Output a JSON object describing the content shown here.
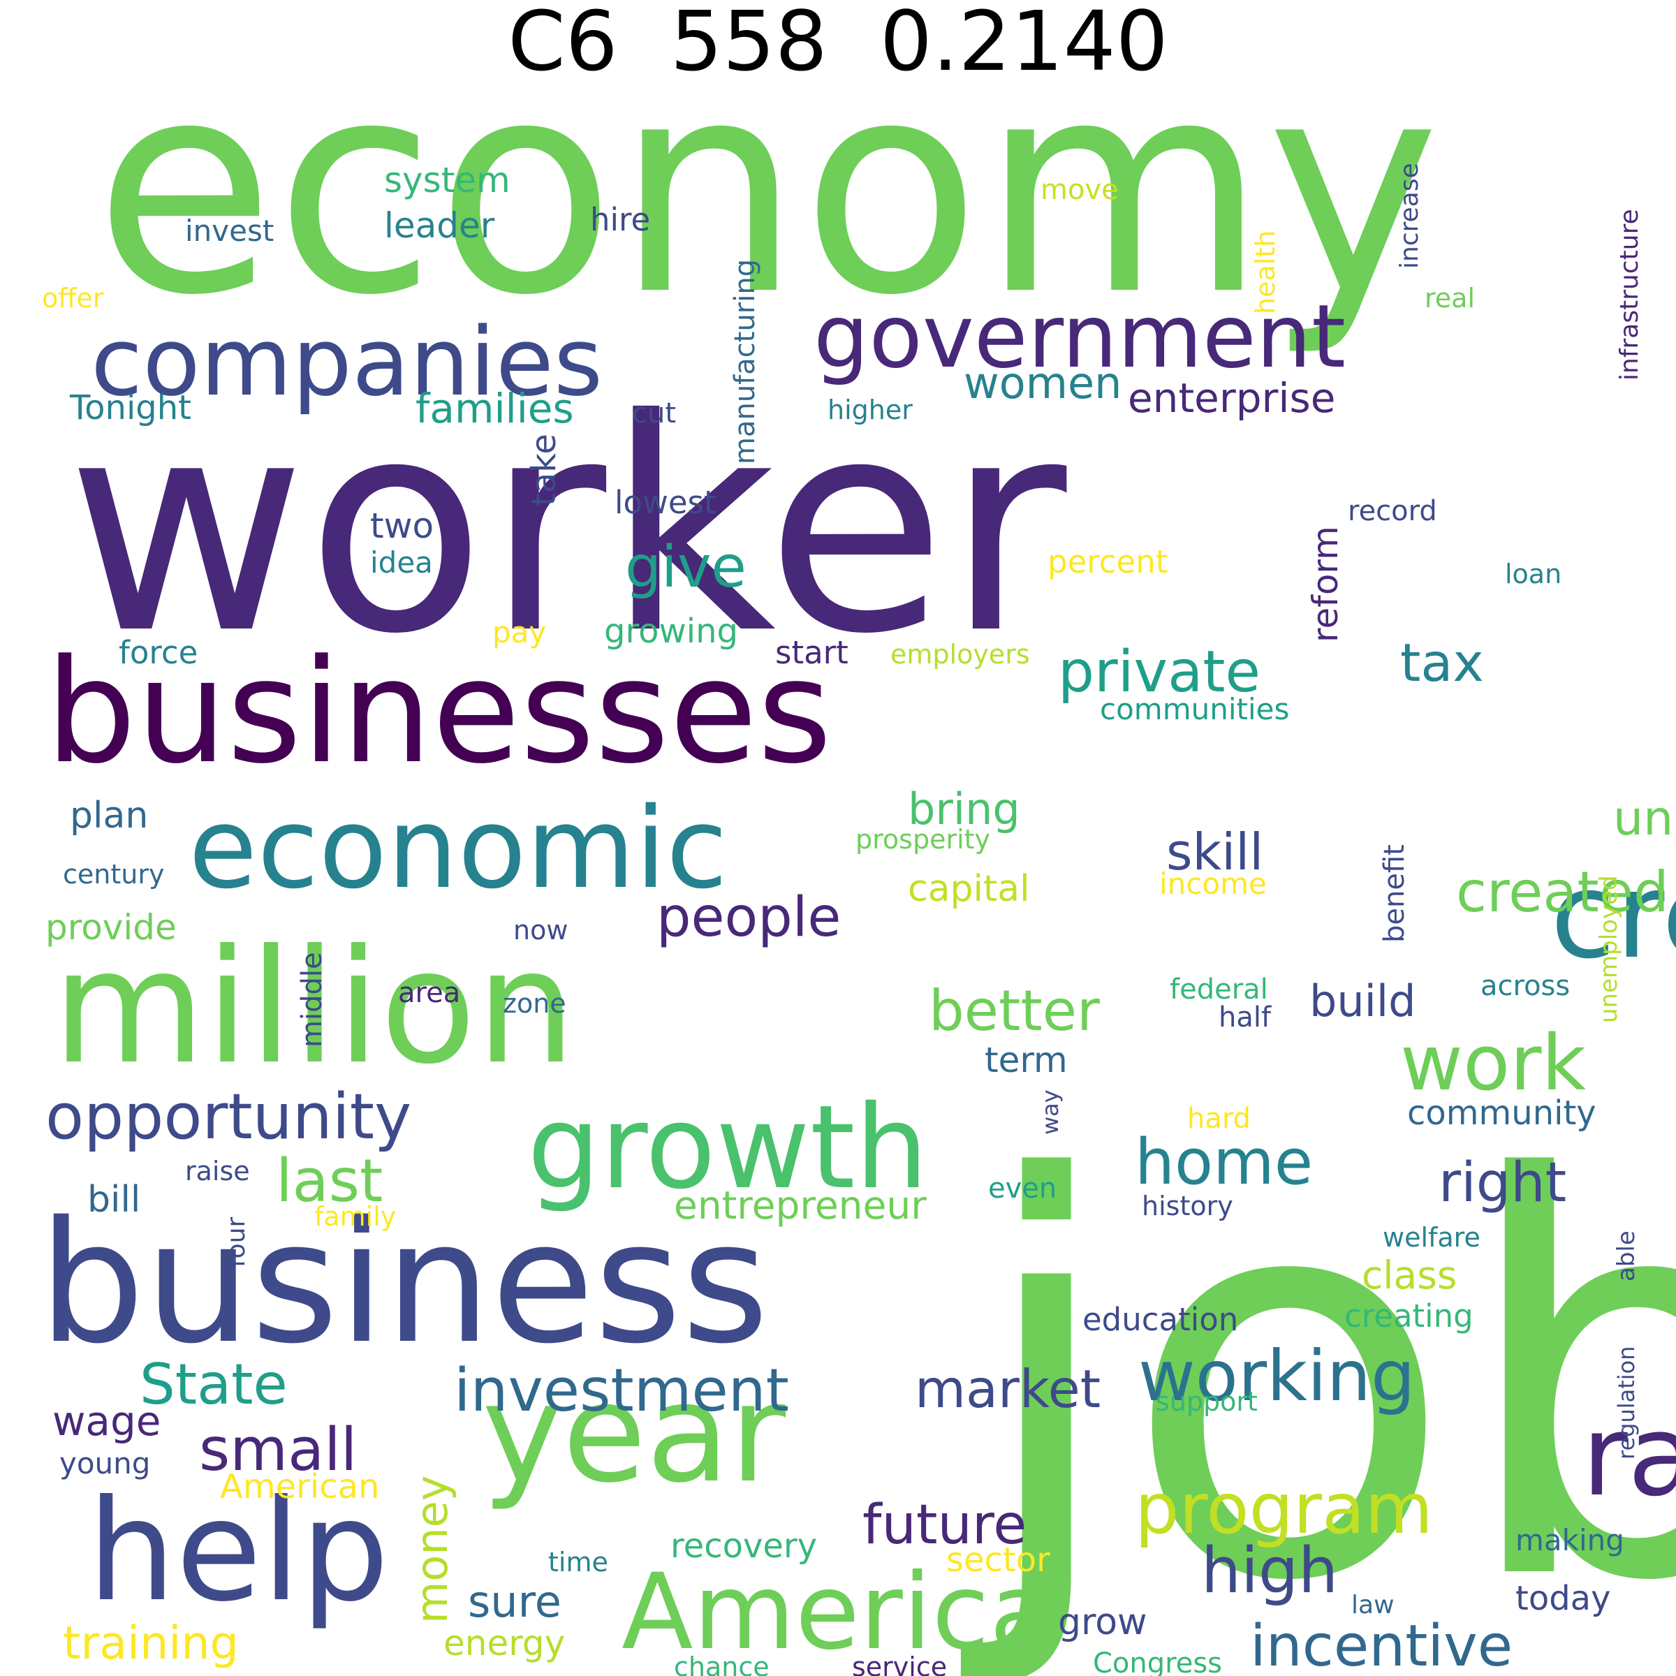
{
  "title": "C6  558  0.2140",
  "palette": {
    "viridis_deep_purple": "#440154",
    "viridis_purple": "#482878",
    "viridis_indigo": "#3e4a89",
    "viridis_blue": "#31688e",
    "viridis_teal": "#26828e",
    "viridis_green_teal": "#1f9e89",
    "viridis_green": "#35b779",
    "viridis_light_green": "#6ece58",
    "viridis_lime": "#b5de2b",
    "viridis_yellow": "#fde725"
  },
  "words": [
    {
      "text": "economy",
      "color": "#6ece58"
    },
    {
      "text": "worker",
      "color": "#482878"
    },
    {
      "text": "job",
      "color": "#6ece58"
    },
    {
      "text": "businesses",
      "color": "#440154"
    },
    {
      "text": "business",
      "color": "#3e4a89"
    },
    {
      "text": "million",
      "color": "#6ece58"
    },
    {
      "text": "companies",
      "color": "#3e4a89"
    },
    {
      "text": "government",
      "color": "#482878"
    },
    {
      "text": "economic",
      "color": "#26828e"
    },
    {
      "text": "create",
      "color": "#26828e"
    },
    {
      "text": "growth",
      "color": "#4ac16d"
    },
    {
      "text": "year",
      "color": "#6ece58"
    },
    {
      "text": "help",
      "color": "#3e4a89"
    },
    {
      "text": "America",
      "color": "#6ece58"
    },
    {
      "text": "rate",
      "color": "#482878"
    },
    {
      "text": "opportunity",
      "color": "#3e4a89"
    },
    {
      "text": "work",
      "color": "#6ece58"
    },
    {
      "text": "working",
      "color": "#2c728e"
    },
    {
      "text": "program",
      "color": "#c2df23"
    },
    {
      "text": "incentive",
      "color": "#31688e"
    },
    {
      "text": "investment",
      "color": "#31688e"
    },
    {
      "text": "tax",
      "color": "#26828e"
    },
    {
      "text": "created",
      "color": "#6ece58"
    },
    {
      "text": "unemployment",
      "color": "#6ece58"
    },
    {
      "text": "private",
      "color": "#1f9e89"
    },
    {
      "text": "home",
      "color": "#26828e"
    },
    {
      "text": "better",
      "color": "#6ece58"
    },
    {
      "text": "people",
      "color": "#482878"
    },
    {
      "text": "high",
      "color": "#3e4a89"
    },
    {
      "text": "last",
      "color": "#6ece58"
    },
    {
      "text": "State",
      "color": "#1f9e89"
    },
    {
      "text": "small",
      "color": "#482878"
    },
    {
      "text": "market",
      "color": "#3e4a89"
    },
    {
      "text": "future",
      "color": "#482878"
    },
    {
      "text": "right",
      "color": "#3e4a89"
    },
    {
      "text": "give",
      "color": "#1f9e89"
    },
    {
      "text": "bring",
      "color": "#4ac16d"
    },
    {
      "text": "skill",
      "color": "#3e4a89"
    },
    {
      "text": "women",
      "color": "#26828e"
    },
    {
      "text": "enterprise",
      "color": "#482878"
    },
    {
      "text": "families",
      "color": "#1f9e89"
    },
    {
      "text": "training",
      "color": "#fde725"
    },
    {
      "text": "money",
      "color": "#b5de2b"
    },
    {
      "text": "build",
      "color": "#3e4a89"
    },
    {
      "text": "entrepreneur",
      "color": "#6ece58"
    },
    {
      "text": "reform",
      "color": "#482878"
    },
    {
      "text": "capital",
      "color": "#c2df23"
    },
    {
      "text": "plan",
      "color": "#31688e"
    },
    {
      "text": "wage",
      "color": "#482878"
    },
    {
      "text": "sure",
      "color": "#31688e"
    },
    {
      "text": "class",
      "color": "#b5de2b"
    },
    {
      "text": "system",
      "color": "#35b779"
    },
    {
      "text": "leader",
      "color": "#26828e"
    },
    {
      "text": "provide",
      "color": "#6ece58"
    },
    {
      "text": "recovery",
      "color": "#35b779"
    },
    {
      "text": "energy",
      "color": "#b5de2b"
    },
    {
      "text": "community",
      "color": "#31688e"
    },
    {
      "text": "creating",
      "color": "#35b779"
    },
    {
      "text": "education",
      "color": "#3e4a89"
    },
    {
      "text": "American",
      "color": "#fde725"
    },
    {
      "text": "sector",
      "color": "#fde725"
    },
    {
      "text": "grow",
      "color": "#3e4a89"
    },
    {
      "text": "growing",
      "color": "#35b779"
    },
    {
      "text": "communities",
      "color": "#1f9e89"
    },
    {
      "text": "start",
      "color": "#482878"
    },
    {
      "text": "term",
      "color": "#31688e"
    },
    {
      "text": "bill",
      "color": "#31688e"
    },
    {
      "text": "Tonight",
      "color": "#26828e"
    },
    {
      "text": "two",
      "color": "#3e4a89"
    },
    {
      "text": "take",
      "color": "#3e4a89"
    },
    {
      "text": "lowest",
      "color": "#3e4a89"
    },
    {
      "text": "percent",
      "color": "#fde725"
    },
    {
      "text": "income",
      "color": "#fde725"
    },
    {
      "text": "today",
      "color": "#3e4a89"
    },
    {
      "text": "making",
      "color": "#31688e"
    },
    {
      "text": "force",
      "color": "#26828e"
    },
    {
      "text": "invest",
      "color": "#31688e"
    },
    {
      "text": "hire",
      "color": "#3e4a89"
    },
    {
      "text": "move",
      "color": "#c8e020"
    },
    {
      "text": "manufacturing",
      "color": "#31688e"
    },
    {
      "text": "cut",
      "color": "#3e4a89"
    },
    {
      "text": "higher",
      "color": "#26828e"
    },
    {
      "text": "young",
      "color": "#3e4a89"
    },
    {
      "text": "idea",
      "color": "#26828e"
    },
    {
      "text": "middle",
      "color": "#3e4a89"
    },
    {
      "text": "benefit",
      "color": "#3e4a89"
    },
    {
      "text": "record",
      "color": "#3e4a89"
    },
    {
      "text": "pay",
      "color": "#fde725"
    },
    {
      "text": "employers",
      "color": "#b5de2b"
    },
    {
      "text": "prosperity",
      "color": "#6ece58"
    },
    {
      "text": "now",
      "color": "#3e4a89"
    },
    {
      "text": "area",
      "color": "#482878"
    },
    {
      "text": "zone",
      "color": "#31688e"
    },
    {
      "text": "federal",
      "color": "#35b779"
    },
    {
      "text": "half",
      "color": "#3e4a89"
    },
    {
      "text": "across",
      "color": "#26828e"
    },
    {
      "text": "hard",
      "color": "#fde725"
    },
    {
      "text": "even",
      "color": "#1f9e89"
    },
    {
      "text": "history",
      "color": "#3e4a89"
    },
    {
      "text": "welfare",
      "color": "#26828e"
    },
    {
      "text": "raise",
      "color": "#3e4a89"
    },
    {
      "text": "family",
      "color": "#fde725"
    },
    {
      "text": "four",
      "color": "#3e4a89"
    },
    {
      "text": "support",
      "color": "#35b779"
    },
    {
      "text": "time",
      "color": "#26828e"
    },
    {
      "text": "law",
      "color": "#31688e"
    },
    {
      "text": "Congress",
      "color": "#35b779"
    },
    {
      "text": "chance",
      "color": "#35b779"
    },
    {
      "text": "service",
      "color": "#482878"
    },
    {
      "text": "offer",
      "color": "#fde725"
    },
    {
      "text": "century",
      "color": "#31688e"
    },
    {
      "text": "real",
      "color": "#6ece58"
    },
    {
      "text": "loan",
      "color": "#26828e"
    },
    {
      "text": "health",
      "color": "#fde725"
    },
    {
      "text": "increase",
      "color": "#3e4a89"
    },
    {
      "text": "infrastructure",
      "color": "#482878"
    },
    {
      "text": "unemployed",
      "color": "#b5de2b"
    },
    {
      "text": "able",
      "color": "#3e4a89"
    },
    {
      "text": "regulation",
      "color": "#3e4a89"
    },
    {
      "text": "way",
      "color": "#3e4a89"
    }
  ]
}
